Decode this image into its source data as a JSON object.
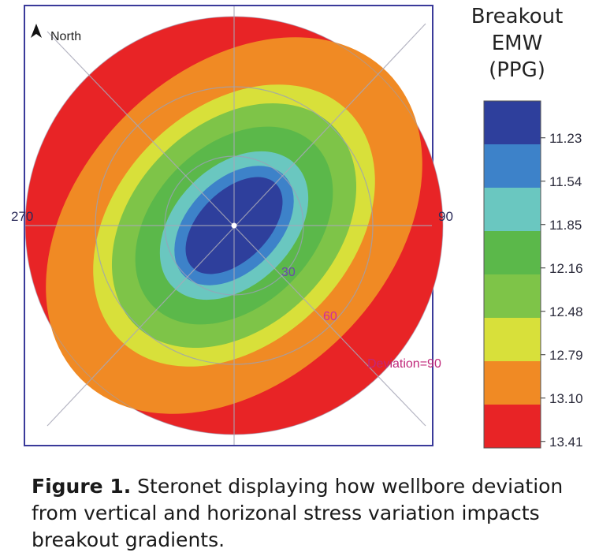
{
  "chart_data": {
    "type": "heatmap",
    "title": "",
    "north_label": "North",
    "azimuth_labels": [
      "270",
      "90"
    ],
    "deviation_labels": [
      "30",
      "60",
      "Deviation=90"
    ],
    "bands": [
      {
        "value": "11.23",
        "color": "#2e3f9c"
      },
      {
        "value": "11.54",
        "color": "#3d82c9"
      },
      {
        "value": "11.85",
        "color": "#6ac7c0"
      },
      {
        "value": "12.16",
        "color": "#5bb84a"
      },
      {
        "value": "12.48",
        "color": "#7ec448"
      },
      {
        "value": "12.79",
        "color": "#d8e03a"
      },
      {
        "value": "13.10",
        "color": "#f08a24"
      },
      {
        "value": "13.41",
        "color": "#e82426"
      }
    ]
  },
  "legend": {
    "title_lines": [
      "Breakout",
      "EMW",
      "(PPG)"
    ]
  },
  "caption": {
    "label": "Figure 1.",
    "text": " Steronet displaying how wellbore deviation from vertical and horizonal stress variation impacts breakout gradients."
  }
}
